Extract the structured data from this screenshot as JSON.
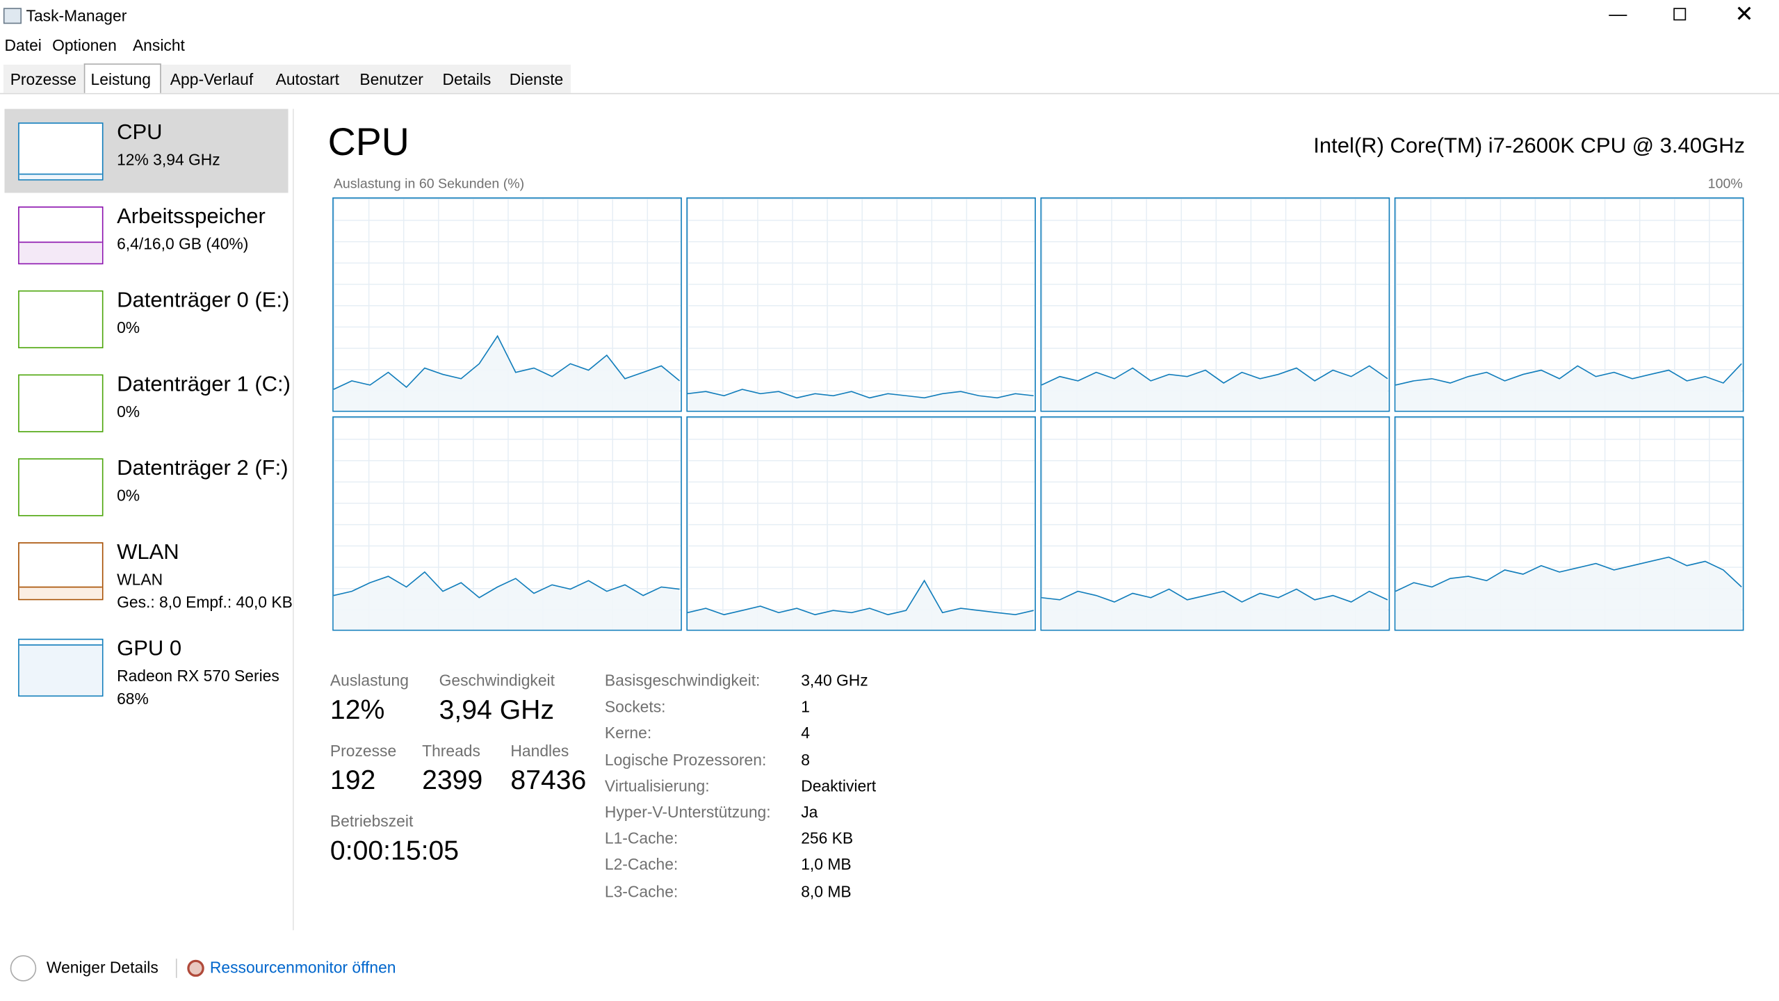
{
  "window": {
    "title": "Task-Manager"
  },
  "menu": [
    "Datei",
    "Optionen",
    "Ansicht"
  ],
  "tabs": [
    "Prozesse",
    "Leistung",
    "App-Verlauf",
    "Autostart",
    "Benutzer",
    "Details",
    "Dienste"
  ],
  "sidebar": [
    {
      "name": "CPU",
      "lines": [
        "12% 3,94 GHz"
      ]
    },
    {
      "name": "Arbeitsspeicher",
      "lines": [
        "6,4/16,0 GB (40%)"
      ]
    },
    {
      "name": "Datenträger 0 (E:)",
      "lines": [
        "0%"
      ]
    },
    {
      "name": "Datenträger 1 (C:)",
      "lines": [
        "0%"
      ]
    },
    {
      "name": "Datenträger 2 (F:)",
      "lines": [
        "0%"
      ]
    },
    {
      "name": "WLAN",
      "lines": [
        "WLAN",
        "Ges.: 8,0  Empf.: 40,0 KB"
      ]
    },
    {
      "name": "GPU 0",
      "lines": [
        "Radeon RX 570 Series",
        "68%"
      ]
    }
  ],
  "header": {
    "title": "CPU",
    "model": "Intel(R) Core(TM) i7-2600K CPU @ 3.40GHz"
  },
  "graph": {
    "label": "Auslastung in 60 Sekunden (%)",
    "max_label": "100%",
    "ylim": [
      0,
      100
    ],
    "cores": [
      [
        10,
        14,
        12,
        18,
        11,
        20,
        17,
        15,
        22,
        35,
        18,
        20,
        16,
        22,
        19,
        26,
        15,
        18,
        21,
        14
      ],
      [
        8,
        9,
        7,
        10,
        8,
        9,
        6,
        8,
        7,
        9,
        6,
        8,
        7,
        6,
        8,
        9,
        7,
        6,
        8,
        7
      ],
      [
        12,
        16,
        14,
        18,
        15,
        20,
        14,
        17,
        16,
        19,
        13,
        18,
        15,
        17,
        20,
        14,
        19,
        16,
        21,
        15
      ],
      [
        12,
        14,
        15,
        13,
        16,
        18,
        14,
        17,
        19,
        15,
        21,
        16,
        18,
        15,
        17,
        19,
        14,
        16,
        13,
        22
      ],
      [
        16,
        18,
        22,
        25,
        20,
        27,
        18,
        22,
        15,
        20,
        24,
        17,
        21,
        19,
        23,
        18,
        21,
        16,
        20,
        19
      ],
      [
        8,
        10,
        7,
        9,
        11,
        8,
        10,
        7,
        9,
        8,
        10,
        7,
        9,
        23,
        8,
        10,
        9,
        8,
        7,
        9
      ],
      [
        15,
        14,
        18,
        16,
        13,
        17,
        15,
        19,
        14,
        16,
        18,
        13,
        17,
        15,
        19,
        14,
        16,
        13,
        18,
        14
      ],
      [
        18,
        22,
        20,
        24,
        25,
        23,
        28,
        26,
        30,
        27,
        29,
        31,
        28,
        30,
        32,
        34,
        30,
        32,
        28,
        20
      ]
    ]
  },
  "stats": [
    {
      "label": "Auslastung",
      "value": "12%"
    },
    {
      "label": "Geschwindigkeit",
      "value": "3,94 GHz"
    },
    {
      "label": "Prozesse",
      "value": "192"
    },
    {
      "label": "Threads",
      "value": "2399"
    },
    {
      "label": "Handles",
      "value": "87436"
    },
    {
      "label": "Betriebszeit",
      "value": "0:00:15:05"
    }
  ],
  "info": [
    [
      "Basisgeschwindigkeit:",
      "3,40 GHz"
    ],
    [
      "Sockets:",
      "1"
    ],
    [
      "Kerne:",
      "4"
    ],
    [
      "Logische Prozessoren:",
      "8"
    ],
    [
      "Virtualisierung:",
      "Deaktiviert"
    ],
    [
      "Hyper-V-Unterstützung:",
      "Ja"
    ],
    [
      "L1-Cache:",
      "256 KB"
    ],
    [
      "L2-Cache:",
      "1,0 MB"
    ],
    [
      "L3-Cache:",
      "8,0 MB"
    ]
  ],
  "footer": {
    "less": "Weniger Details",
    "monitor": "Ressourcenmonitor öffnen"
  }
}
